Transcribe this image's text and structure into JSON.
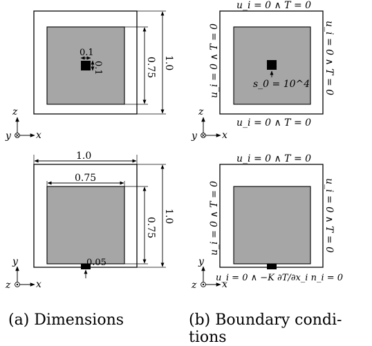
{
  "panel_a": {
    "top": {
      "small_w": "0.1",
      "small_h": "0.1",
      "inner_h": "0.75",
      "outer_h": "1.0",
      "axis_v": "z",
      "axis_h": "x",
      "axis_out": "y"
    },
    "bottom": {
      "outer_w": "1.0",
      "inner_w": "0.75",
      "inner_h": "0.75",
      "outer_h": "1.0",
      "notch": "0.05",
      "axis_v": "y",
      "axis_h": "x",
      "axis_out": "z"
    },
    "caption": "(a) Dimensions"
  },
  "panel_b": {
    "top": {
      "bc_top": "u_i = 0 ∧ T = 0",
      "bc_left": "u_i = 0 ∧ T = 0",
      "bc_right": "u_i = 0 ∧ T = 0",
      "bc_bottom": "u_i = 0 ∧ T = 0",
      "source": "s_0 = 10^4",
      "axis_v": "z",
      "axis_h": "x",
      "axis_out": "y"
    },
    "bottom": {
      "bc_top": "u_i = 0 ∧ T = 0",
      "bc_left": "u_i = 0 ∧ T = 0",
      "bc_right": "u_i = 0 ∧ T = 0",
      "bc_bottom": "u_i = 0 ∧ −K ∂T/∂x_i n_i = 0",
      "axis_v": "y",
      "axis_h": "x",
      "axis_out": "z"
    },
    "caption_line1": "(b)   Boundary   condi-",
    "caption_line2": "tions"
  },
  "colors": {
    "fill": "#a6a6a6",
    "source": "#000000",
    "stroke": "#000000"
  }
}
